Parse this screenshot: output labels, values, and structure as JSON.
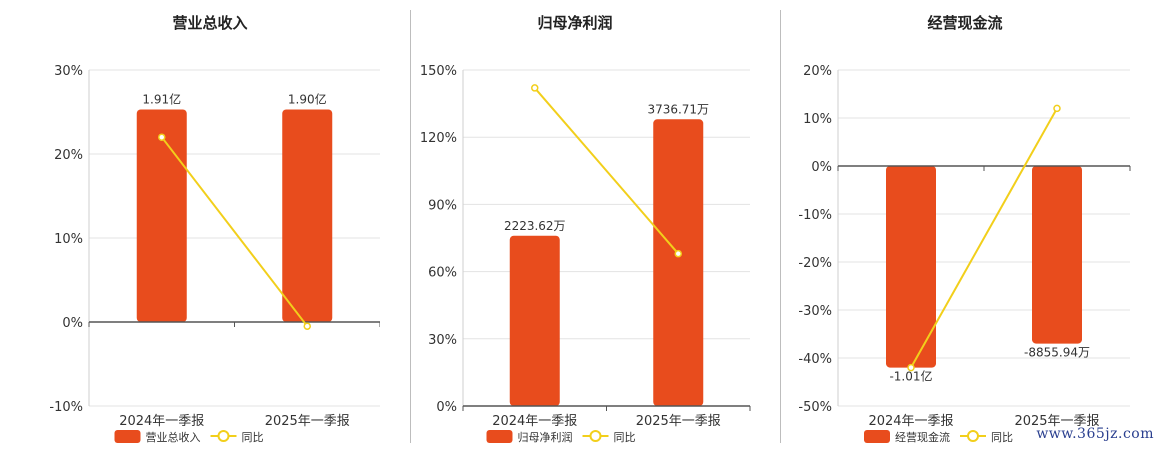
{
  "colors": {
    "bar": "#E84C1D",
    "line": "#F2CF1B",
    "axis": "#555555",
    "grid": "#e3e3e3",
    "text": "#333333"
  },
  "legend": {
    "ratio_label": "同比"
  },
  "watermark": "www.365jz.com",
  "chart_data": [
    {
      "type": "bar",
      "title": "营业总收入",
      "categories": [
        "2024年一季报",
        "2025年一季报"
      ],
      "bar_series_name": "营业总收入",
      "bar_values_pct": [
        25.3,
        25.3
      ],
      "bar_labels": [
        "1.91亿",
        "1.90亿"
      ],
      "line_series_name": "同比",
      "line_values_pct": [
        22,
        -0.5
      ],
      "ylim": [
        -10,
        30
      ],
      "yticks": [
        -10,
        0,
        10,
        20,
        30
      ],
      "ytick_labels": [
        "-10%",
        "0%",
        "10%",
        "20%",
        "30%"
      ],
      "grid": true,
      "legend_position": "bottom"
    },
    {
      "type": "bar",
      "title": "归母净利润",
      "categories": [
        "2024年一季报",
        "2025年一季报"
      ],
      "bar_series_name": "归母净利润",
      "bar_values_pct": [
        76,
        128
      ],
      "bar_labels": [
        "2223.62万",
        "3736.71万"
      ],
      "line_series_name": "同比",
      "line_values_pct": [
        142,
        68
      ],
      "ylim": [
        0,
        150
      ],
      "yticks": [
        0,
        30,
        60,
        90,
        120,
        150
      ],
      "ytick_labels": [
        "0%",
        "30%",
        "60%",
        "90%",
        "120%",
        "150%"
      ],
      "grid": true,
      "legend_position": "bottom"
    },
    {
      "type": "bar",
      "title": "经营现金流",
      "categories": [
        "2024年一季报",
        "2025年一季报"
      ],
      "bar_series_name": "经营现金流",
      "bar_values_pct": [
        -42,
        -37
      ],
      "bar_labels": [
        "-1.01亿",
        "-8855.94万"
      ],
      "line_series_name": "同比",
      "line_values_pct": [
        -42,
        12
      ],
      "ylim": [
        -50,
        20
      ],
      "yticks": [
        -50,
        -40,
        -30,
        -20,
        -10,
        0,
        10,
        20
      ],
      "ytick_labels": [
        "-50%",
        "-40%",
        "-30%",
        "-20%",
        "-10%",
        "0%",
        "10%",
        "20%"
      ],
      "grid": true,
      "legend_position": "bottom"
    }
  ]
}
